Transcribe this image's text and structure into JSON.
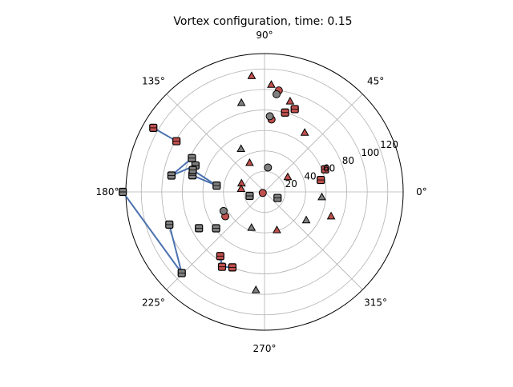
{
  "chart_data": {
    "type": "scatter",
    "projection": "polar",
    "title": "Vortex configuration, time: 0.15",
    "r_ticks": [
      20,
      40,
      60,
      80,
      100,
      120
    ],
    "r_tick_labels": [
      "20",
      "40",
      "60",
      "80",
      "100",
      "120"
    ],
    "rlim": [
      0,
      135
    ],
    "theta_ticks_deg": [
      0,
      45,
      90,
      135,
      180,
      225,
      270,
      315
    ],
    "theta_tick_labels": [
      "0°",
      "45°",
      "90°",
      "135°",
      "180°",
      "225°",
      "270°",
      "315°"
    ],
    "grid": true,
    "colors": {
      "red": "#c0504d",
      "gray": "#7f7f7f",
      "link": "#4c72b0",
      "grid": "#b0b0b0",
      "edge": "#000000"
    },
    "series": [
      {
        "marker": "triangle",
        "color": "red",
        "points": [
          {
            "r": 114,
            "theta": 96.3
          },
          {
            "r": 105,
            "theta": 86.4
          },
          {
            "r": 92,
            "theta": 74.3
          },
          {
            "r": 32,
            "theta": 117.0
          },
          {
            "r": 27,
            "theta": 33.0
          },
          {
            "r": 24,
            "theta": 159.0
          },
          {
            "r": 23,
            "theta": 172.0
          },
          {
            "r": 69,
            "theta": 340.0
          },
          {
            "r": 39,
            "theta": 288.0
          },
          {
            "r": 70,
            "theta": 56.0
          }
        ]
      },
      {
        "marker": "triangle",
        "color": "gray",
        "points": [
          {
            "r": 90,
            "theta": 104.5
          },
          {
            "r": 48,
            "theta": 118.5
          },
          {
            "r": 56,
            "theta": 355.0
          },
          {
            "r": 49,
            "theta": 326.0
          },
          {
            "r": 96,
            "theta": 265.0
          },
          {
            "r": 37,
            "theta": 250.0
          }
        ]
      },
      {
        "marker": "circle",
        "color": "red",
        "points": [
          {
            "r": 100,
            "theta": 82.0
          },
          {
            "r": 71,
            "theta": 84.5
          },
          {
            "r": 2,
            "theta": 210.0
          },
          {
            "r": 45,
            "theta": 212.0
          }
        ]
      },
      {
        "marker": "circle",
        "color": "gray",
        "points": [
          {
            "r": 96,
            "theta": 83.0
          },
          {
            "r": 74,
            "theta": 86.0
          },
          {
            "r": 24,
            "theta": 82.0
          },
          {
            "r": 44,
            "theta": 205.0
          }
        ]
      },
      {
        "marker": "square",
        "color": "red",
        "points": [
          {
            "r": 80,
            "theta": 75.5
          },
          {
            "r": 86,
            "theta": 70.0
          },
          {
            "r": 63,
            "theta": 20.5
          },
          {
            "r": 56,
            "theta": 12.0
          },
          {
            "r": 125,
            "theta": 150.0
          },
          {
            "r": 99,
            "theta": 150.0
          },
          {
            "r": 76,
            "theta": 235.5
          },
          {
            "r": 80,
            "theta": 247.0
          },
          {
            "r": 84,
            "theta": 240.5
          }
        ]
      },
      {
        "marker": "square",
        "color": "gray",
        "points": [
          {
            "r": 78,
            "theta": 155.0
          },
          {
            "r": 72,
            "theta": 159.0
          },
          {
            "r": 92,
            "theta": 170.0
          },
          {
            "r": 72,
            "theta": 167.0
          },
          {
            "r": 73,
            "theta": 163.0
          },
          {
            "r": 47,
            "theta": 172.5
          },
          {
            "r": 138,
            "theta": 180.0
          },
          {
            "r": 98,
            "theta": 199.0
          },
          {
            "r": 113,
            "theta": 224.5
          },
          {
            "r": 73,
            "theta": 209.0
          },
          {
            "r": 59,
            "theta": 217.0
          },
          {
            "r": 15,
            "theta": 195.0
          },
          {
            "r": 14,
            "theta": 335.0
          }
        ]
      }
    ],
    "links": [
      [
        {
          "r": 125,
          "theta": 150.0
        },
        {
          "r": 99,
          "theta": 150.0
        }
      ],
      [
        {
          "r": 138,
          "theta": 180.0
        },
        {
          "r": 113,
          "theta": 224.5
        }
      ],
      [
        {
          "r": 98,
          "theta": 199.0
        },
        {
          "r": 113,
          "theta": 224.5
        }
      ],
      [
        {
          "r": 92,
          "theta": 170.0
        },
        {
          "r": 78,
          "theta": 155.0
        }
      ],
      [
        {
          "r": 92,
          "theta": 170.0
        },
        {
          "r": 72,
          "theta": 159.0
        }
      ],
      [
        {
          "r": 72,
          "theta": 167.0
        },
        {
          "r": 47,
          "theta": 172.5
        }
      ],
      [
        {
          "r": 73,
          "theta": 163.0
        },
        {
          "r": 47,
          "theta": 172.5
        }
      ],
      [
        {
          "r": 76,
          "theta": 235.5
        },
        {
          "r": 84,
          "theta": 240.5
        }
      ],
      [
        {
          "r": 80,
          "theta": 247.0
        },
        {
          "r": 84,
          "theta": 240.5
        }
      ]
    ]
  }
}
